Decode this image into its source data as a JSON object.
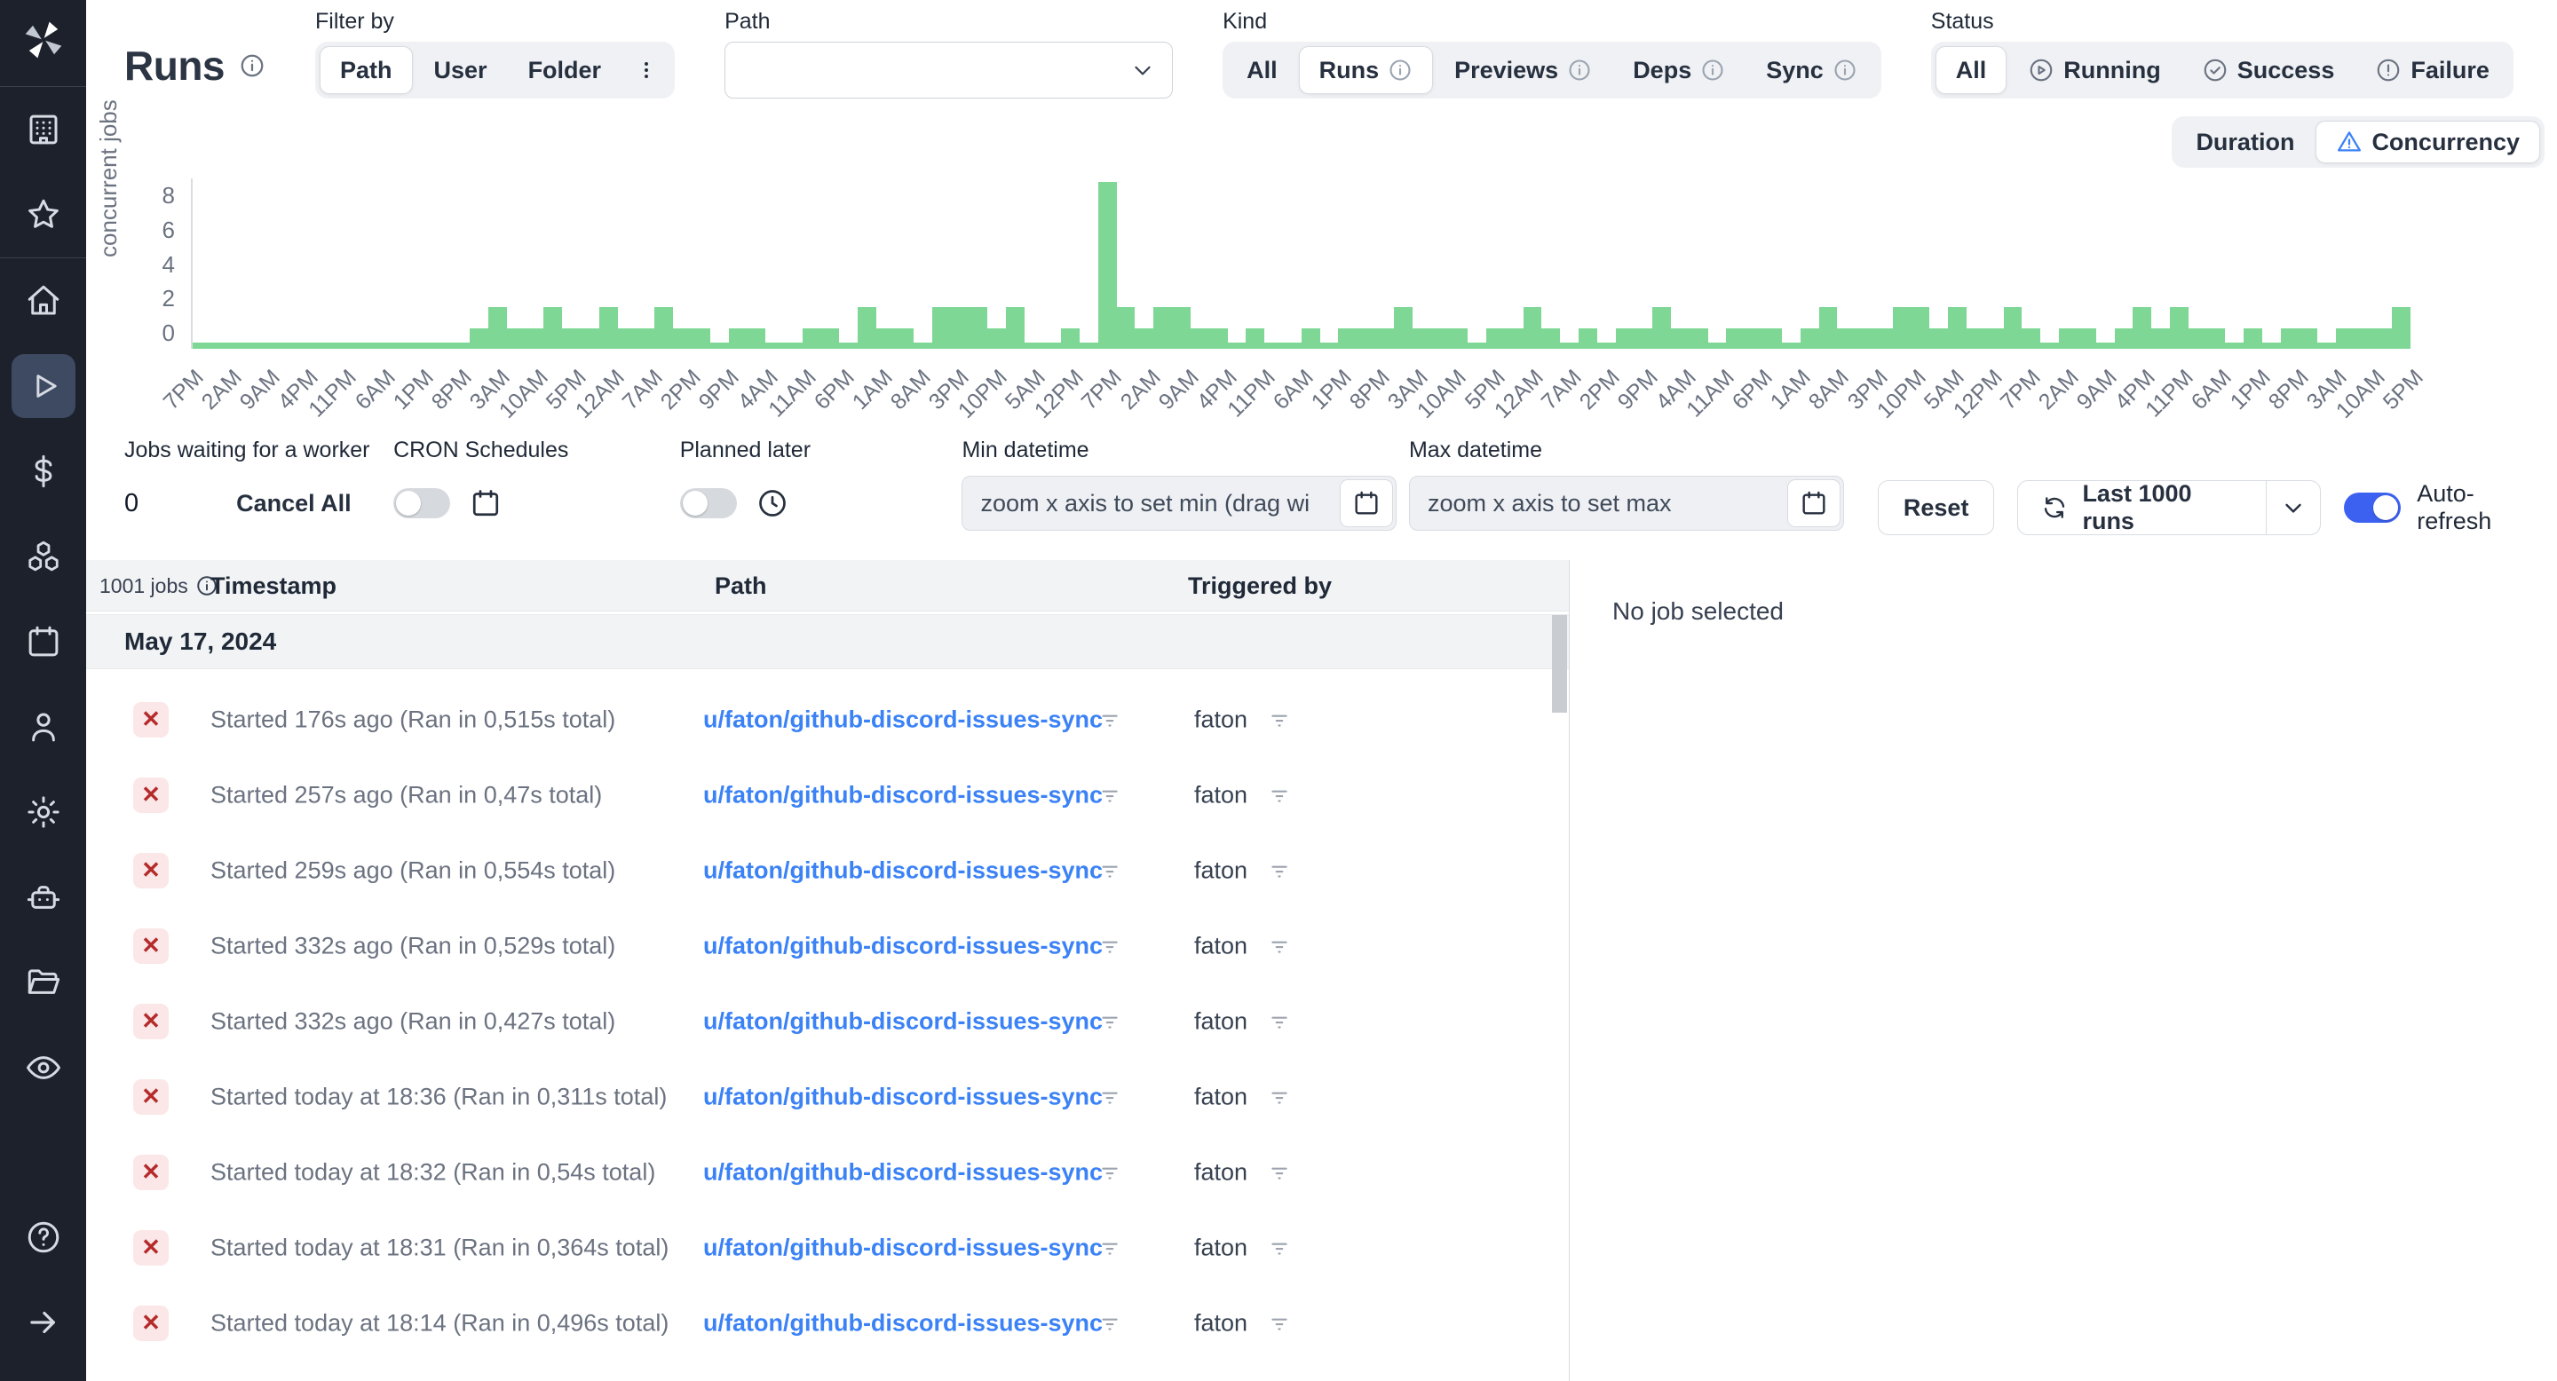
{
  "app": {
    "title": "Runs"
  },
  "sidebar": {
    "active_item": "runs",
    "icons": [
      "windmill-logo",
      "workspace",
      "favorites",
      "home",
      "runs",
      "usage",
      "resources",
      "schedules",
      "users",
      "settings",
      "workers",
      "folders",
      "audit-logs",
      "help",
      "expand"
    ]
  },
  "header": {
    "title": "Runs",
    "filter_by": {
      "label": "Filter by",
      "options": [
        "Path",
        "User",
        "Folder"
      ],
      "selected": "Path"
    },
    "path_filter": {
      "label": "Path",
      "value": ""
    },
    "kind": {
      "label": "Kind",
      "options": [
        "All",
        "Runs",
        "Previews",
        "Deps",
        "Sync"
      ],
      "selected": "Runs"
    },
    "status": {
      "label": "Status",
      "options": [
        "All",
        "Running",
        "Success",
        "Failure"
      ],
      "selected": "All"
    },
    "more_filters_label": "More filters"
  },
  "chart_mode": {
    "options": [
      "Duration",
      "Concurrency"
    ],
    "selected": "Concurrency"
  },
  "chart_data": {
    "type": "bar",
    "title": "",
    "xlabel": "",
    "ylabel": "concurrent jobs",
    "ylim": [
      0,
      8
    ],
    "ytick_labels": [
      "8",
      "6",
      "4",
      "2",
      "0"
    ],
    "grid": false,
    "legend": false,
    "bar_color": "#7ed795",
    "note": "concurrency over ~2 weeks, mostly 0-2 concurrent jobs with a single spike of 8 shortly after the first 12PM mark",
    "x_labels": [
      "7PM",
      "2AM",
      "9AM",
      "4PM",
      "11PM",
      "6AM",
      "1PM",
      "8PM",
      "3AM",
      "10AM",
      "5PM",
      "12AM",
      "7AM",
      "2PM",
      "9PM",
      "4AM",
      "11AM",
      "6PM",
      "1AM",
      "8AM",
      "3PM",
      "10PM",
      "5AM",
      "12PM",
      "7PM",
      "2AM",
      "9AM",
      "4PM",
      "11PM",
      "6AM",
      "1PM",
      "8PM",
      "3AM",
      "10AM",
      "5PM",
      "12AM",
      "7AM",
      "2PM",
      "9PM",
      "4AM",
      "11AM",
      "6PM",
      "1AM",
      "8AM",
      "3PM",
      "10PM",
      "5AM",
      "12PM",
      "7PM",
      "2AM",
      "9AM",
      "4PM",
      "11PM",
      "6AM",
      "1PM",
      "8PM",
      "3AM",
      "10AM",
      "5PM"
    ],
    "values": [
      0,
      0,
      0,
      0,
      0,
      0,
      0,
      0,
      0,
      0,
      0,
      0,
      0,
      0,
      0,
      1,
      2,
      1,
      1,
      2,
      1,
      1,
      2,
      1,
      1,
      2,
      1,
      1,
      0,
      1,
      1,
      0,
      0,
      1,
      1,
      0,
      2,
      1,
      1,
      0,
      2,
      2,
      2,
      1,
      2,
      0,
      0,
      1,
      0,
      8,
      2,
      1,
      2,
      2,
      1,
      1,
      0,
      1,
      0,
      0,
      1,
      0,
      1,
      1,
      1,
      2,
      1,
      1,
      1,
      0,
      1,
      1,
      2,
      1,
      0,
      1,
      0,
      1,
      1,
      2,
      1,
      1,
      0,
      1,
      1,
      1,
      0,
      1,
      2,
      1,
      1,
      1,
      2,
      2,
      1,
      2,
      1,
      1,
      2,
      1,
      0,
      1,
      1,
      0,
      1,
      2,
      1,
      2,
      1,
      1,
      0,
      1,
      0,
      1,
      1,
      0,
      1,
      1,
      1,
      2
    ]
  },
  "controls": {
    "jobs_waiting": {
      "label": "Jobs waiting for a worker",
      "value": "0",
      "cancel_all_label": "Cancel All"
    },
    "cron": {
      "label": "CRON Schedules",
      "enabled": false
    },
    "planned": {
      "label": "Planned later",
      "enabled": false
    },
    "min_datetime": {
      "label": "Min datetime",
      "placeholder": "zoom x axis to set min (drag wi"
    },
    "max_datetime": {
      "label": "Max datetime",
      "placeholder": "zoom x axis to set max"
    },
    "reset_label": "Reset",
    "refresh_label": "Last 1000 runs",
    "auto_refresh": {
      "label": "Auto-refresh",
      "enabled": true
    }
  },
  "table": {
    "jobs_count": "1001 jobs",
    "columns": {
      "timestamp": "Timestamp",
      "path": "Path",
      "triggered_by": "Triggered by"
    },
    "group_date": "May 17, 2024",
    "rows": [
      {
        "status": "failure",
        "timestamp": "Started 176s ago (Ran in 0,515s total)",
        "path": "u/faton/github-discord-issues-sync",
        "triggered_by": "faton"
      },
      {
        "status": "failure",
        "timestamp": "Started 257s ago (Ran in 0,47s total)",
        "path": "u/faton/github-discord-issues-sync",
        "triggered_by": "faton"
      },
      {
        "status": "failure",
        "timestamp": "Started 259s ago (Ran in 0,554s total)",
        "path": "u/faton/github-discord-issues-sync",
        "triggered_by": "faton"
      },
      {
        "status": "failure",
        "timestamp": "Started 332s ago (Ran in 0,529s total)",
        "path": "u/faton/github-discord-issues-sync",
        "triggered_by": "faton"
      },
      {
        "status": "failure",
        "timestamp": "Started 332s ago (Ran in 0,427s total)",
        "path": "u/faton/github-discord-issues-sync",
        "triggered_by": "faton"
      },
      {
        "status": "failure",
        "timestamp": "Started today at 18:36 (Ran in 0,311s total)",
        "path": "u/faton/github-discord-issues-sync",
        "triggered_by": "faton"
      },
      {
        "status": "failure",
        "timestamp": "Started today at 18:32 (Ran in 0,54s total)",
        "path": "u/faton/github-discord-issues-sync",
        "triggered_by": "faton"
      },
      {
        "status": "failure",
        "timestamp": "Started today at 18:31 (Ran in 0,364s total)",
        "path": "u/faton/github-discord-issues-sync",
        "triggered_by": "faton"
      },
      {
        "status": "failure",
        "timestamp": "Started today at 18:14 (Ran in 0,496s total)",
        "path": "u/faton/github-discord-issues-sync",
        "triggered_by": "faton"
      }
    ],
    "failure_glyph": "✕"
  },
  "detail_panel": {
    "empty_text": "No job selected"
  },
  "colors": {
    "accent_blue": "#3b82f6",
    "toggle_blue": "#3c61f0",
    "bar_green": "#7ed795",
    "dark_button": "#3e4a62",
    "sidebar_bg": "#1c212b",
    "failure_red": "#b52a2a",
    "failure_bg": "#fbe7e7"
  }
}
